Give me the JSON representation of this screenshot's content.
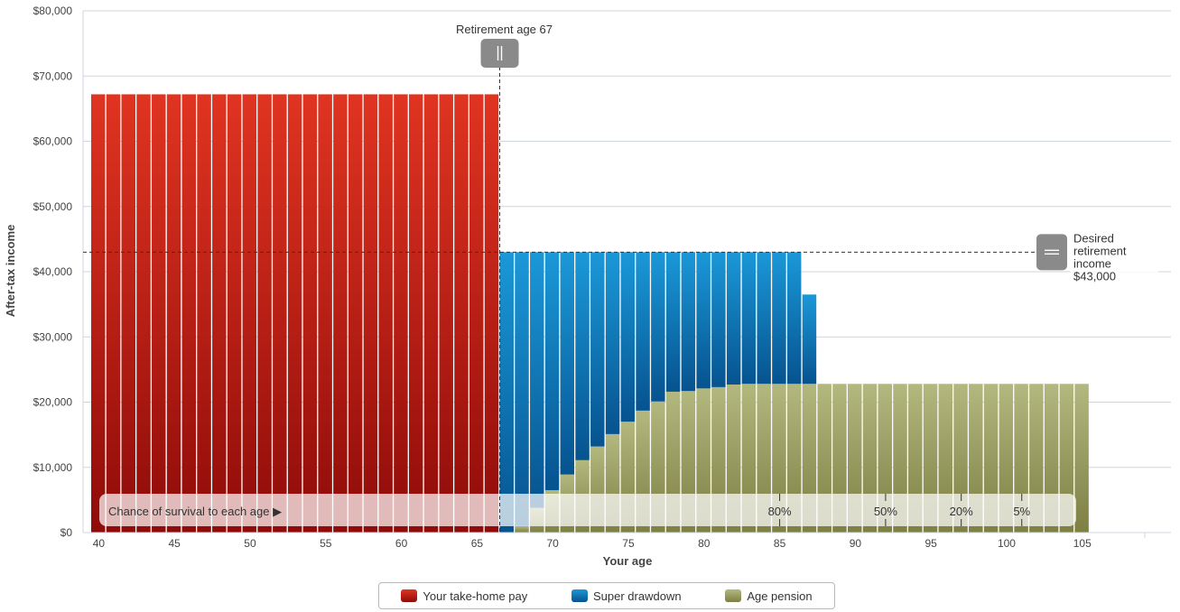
{
  "chart_data": {
    "type": "bar",
    "stacked": true,
    "xlabel": "Your age",
    "ylabel": "After-tax income",
    "xlim": [
      40,
      110
    ],
    "ylim": [
      0,
      80000
    ],
    "x_ticks": [
      40,
      45,
      50,
      55,
      60,
      65,
      70,
      75,
      80,
      85,
      90,
      95,
      100,
      105
    ],
    "y_ticks": [
      0,
      10000,
      20000,
      30000,
      40000,
      50000,
      60000,
      70000,
      80000
    ],
    "y_tick_labels": [
      "$0",
      "$10,000",
      "$20,000",
      "$30,000",
      "$40,000",
      "$50,000",
      "$60,000",
      "$70,000",
      "$80,000"
    ],
    "ages": [
      40,
      41,
      42,
      43,
      44,
      45,
      46,
      47,
      48,
      49,
      50,
      51,
      52,
      53,
      54,
      55,
      56,
      57,
      58,
      59,
      60,
      61,
      62,
      63,
      64,
      65,
      66,
      67,
      68,
      69,
      70,
      71,
      72,
      73,
      74,
      75,
      76,
      77,
      78,
      79,
      80,
      81,
      82,
      83,
      84,
      85,
      86,
      87,
      88,
      89,
      90,
      91,
      92,
      93,
      94,
      95,
      96,
      97,
      98,
      99,
      100,
      101,
      102,
      103,
      104,
      105
    ],
    "series": [
      {
        "name": "Your take-home pay",
        "color": "#c0201a",
        "values": [
          67200,
          67200,
          67200,
          67200,
          67200,
          67200,
          67200,
          67200,
          67200,
          67200,
          67200,
          67200,
          67200,
          67200,
          67200,
          67200,
          67200,
          67200,
          67200,
          67200,
          67200,
          67200,
          67200,
          67200,
          67200,
          67200,
          67200,
          0,
          0,
          0,
          0,
          0,
          0,
          0,
          0,
          0,
          0,
          0,
          0,
          0,
          0,
          0,
          0,
          0,
          0,
          0,
          0,
          0,
          0,
          0,
          0,
          0,
          0,
          0,
          0,
          0,
          0,
          0,
          0,
          0,
          0,
          0,
          0,
          0,
          0,
          0
        ]
      },
      {
        "name": "Super drawdown",
        "color": "#137fc4",
        "values": [
          0,
          0,
          0,
          0,
          0,
          0,
          0,
          0,
          0,
          0,
          0,
          0,
          0,
          0,
          0,
          0,
          0,
          0,
          0,
          0,
          0,
          0,
          0,
          0,
          0,
          0,
          0,
          43000,
          42000,
          39200,
          36500,
          34100,
          31900,
          29800,
          27900,
          26000,
          24300,
          22900,
          21400,
          21300,
          20900,
          20700,
          20300,
          20200,
          20200,
          20200,
          20200,
          13700,
          0,
          0,
          0,
          0,
          0,
          0,
          0,
          0,
          0,
          0,
          0,
          0,
          0,
          0,
          0,
          0,
          0,
          0
        ]
      },
      {
        "name": "Age pension",
        "color": "#9aa068",
        "values": [
          0,
          0,
          0,
          0,
          0,
          0,
          0,
          0,
          0,
          0,
          0,
          0,
          0,
          0,
          0,
          0,
          0,
          0,
          0,
          0,
          0,
          0,
          0,
          0,
          0,
          0,
          0,
          0,
          1000,
          3800,
          6500,
          8900,
          11100,
          13200,
          15100,
          17000,
          18700,
          20100,
          21600,
          21700,
          22100,
          22300,
          22700,
          22800,
          22800,
          22800,
          22800,
          22800,
          22800,
          22800,
          22800,
          22800,
          22800,
          22800,
          22800,
          22800,
          22800,
          22800,
          22800,
          22800,
          22800,
          22800,
          22800,
          22800,
          22800,
          22800
        ]
      }
    ],
    "retirement_age": 67,
    "retirement_label": "Retirement age 67",
    "desired_income": 43000,
    "desired_income_label": [
      "Desired",
      "retirement",
      "income",
      "$43,000"
    ],
    "survival": {
      "label": "Chance of survival to each age ▶",
      "markers": [
        {
          "label": "80%",
          "age": 85
        },
        {
          "label": "50%",
          "age": 92
        },
        {
          "label": "20%",
          "age": 97
        },
        {
          "label": "5%",
          "age": 101
        }
      ]
    },
    "legend_position": "bottom-center"
  },
  "legend": [
    {
      "label": "Your take-home pay",
      "color": "#c0201a"
    },
    {
      "label": "Super drawdown",
      "color": "#137fc4"
    },
    {
      "label": "Age pension",
      "color": "#9aa068"
    }
  ]
}
